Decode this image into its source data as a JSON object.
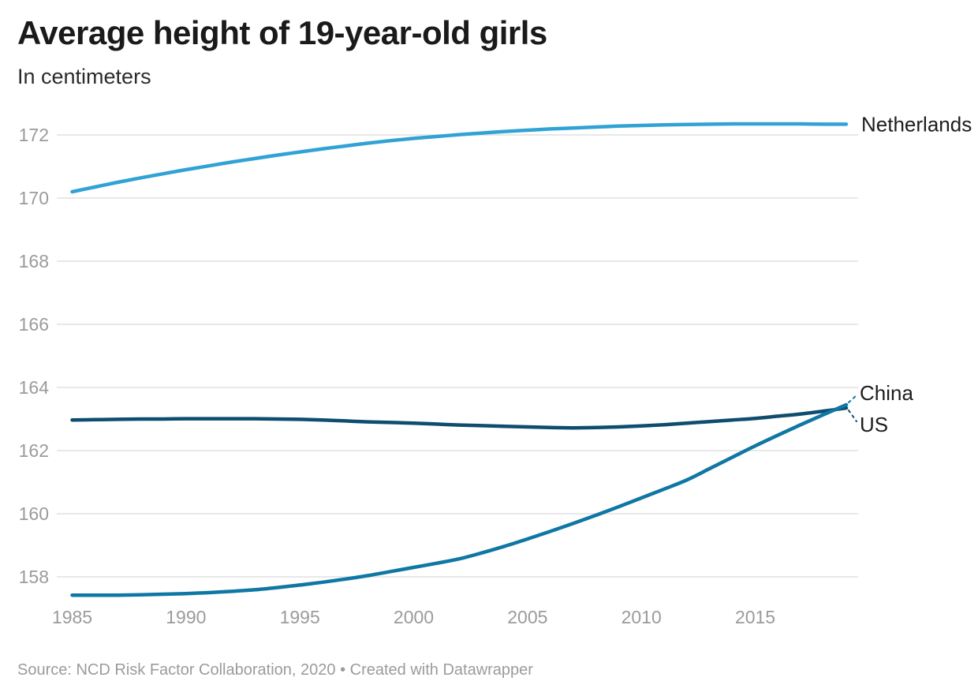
{
  "header": {
    "title": "Average height of 19-year-old girls",
    "subtitle": "In centimeters"
  },
  "footer": {
    "source": "Source: NCD Risk Factor Collaboration, 2020 • Created with Datawrapper"
  },
  "colors": {
    "title_text": "#1a1a1a",
    "subtitle_text": "#2b2b2b",
    "axis_text": "#9b9b9b",
    "gridline": "#e8e8e8",
    "line_label_text": "#1d1d1d",
    "source_text": "#9b9b9b",
    "netherlands_line": "#31a2d5",
    "china_line": "#0f77a3",
    "us_line": "#0e4d6e"
  },
  "chart_data": {
    "type": "line",
    "title": "Average height of 19-year-old girls",
    "subtitle": "In centimeters",
    "xlabel": "",
    "ylabel": "In centimeters",
    "x": [
      1985,
      1986,
      1987,
      1988,
      1989,
      1990,
      1991,
      1992,
      1993,
      1994,
      1995,
      1996,
      1997,
      1998,
      1999,
      2000,
      2001,
      2002,
      2003,
      2004,
      2005,
      2006,
      2007,
      2008,
      2009,
      2010,
      2011,
      2012,
      2013,
      2014,
      2015,
      2016,
      2017,
      2018,
      2019
    ],
    "xticks": [
      1985,
      1990,
      1995,
      2000,
      2005,
      2010,
      2015
    ],
    "yticks": [
      158,
      160,
      162,
      164,
      166,
      168,
      170,
      172
    ],
    "ylim": [
      157.2,
      172.9
    ],
    "xlim": [
      1985,
      2019
    ],
    "grid": "horizontal",
    "legend": "direct-line-end-labels",
    "series": [
      {
        "name": "Netherlands",
        "color": "#31a2d5",
        "values": [
          170.2,
          170.35,
          170.5,
          170.64,
          170.77,
          170.9,
          171.02,
          171.14,
          171.25,
          171.36,
          171.46,
          171.56,
          171.65,
          171.74,
          171.82,
          171.89,
          171.95,
          172.01,
          172.06,
          172.11,
          172.15,
          172.19,
          172.22,
          172.25,
          172.28,
          172.3,
          172.32,
          172.33,
          172.34,
          172.35,
          172.35,
          172.35,
          172.35,
          172.34,
          172.34
        ]
      },
      {
        "name": "China",
        "color": "#0f77a3",
        "values": [
          157.42,
          157.42,
          157.42,
          157.43,
          157.45,
          157.47,
          157.5,
          157.54,
          157.59,
          157.66,
          157.74,
          157.83,
          157.93,
          158.04,
          158.17,
          158.3,
          158.43,
          158.57,
          158.76,
          158.97,
          159.2,
          159.44,
          159.69,
          159.95,
          160.22,
          160.5,
          160.78,
          161.07,
          161.43,
          161.79,
          162.15,
          162.49,
          162.82,
          163.14,
          163.45
        ]
      },
      {
        "name": "US",
        "color": "#0e4d6e",
        "values": [
          162.97,
          162.98,
          162.99,
          163.0,
          163.0,
          163.01,
          163.01,
          163.01,
          163.01,
          163.0,
          162.99,
          162.97,
          162.94,
          162.91,
          162.89,
          162.87,
          162.84,
          162.81,
          162.79,
          162.77,
          162.75,
          162.73,
          162.72,
          162.73,
          162.75,
          162.78,
          162.82,
          162.87,
          162.92,
          162.97,
          163.02,
          163.09,
          163.16,
          163.25,
          163.35
        ]
      }
    ]
  }
}
